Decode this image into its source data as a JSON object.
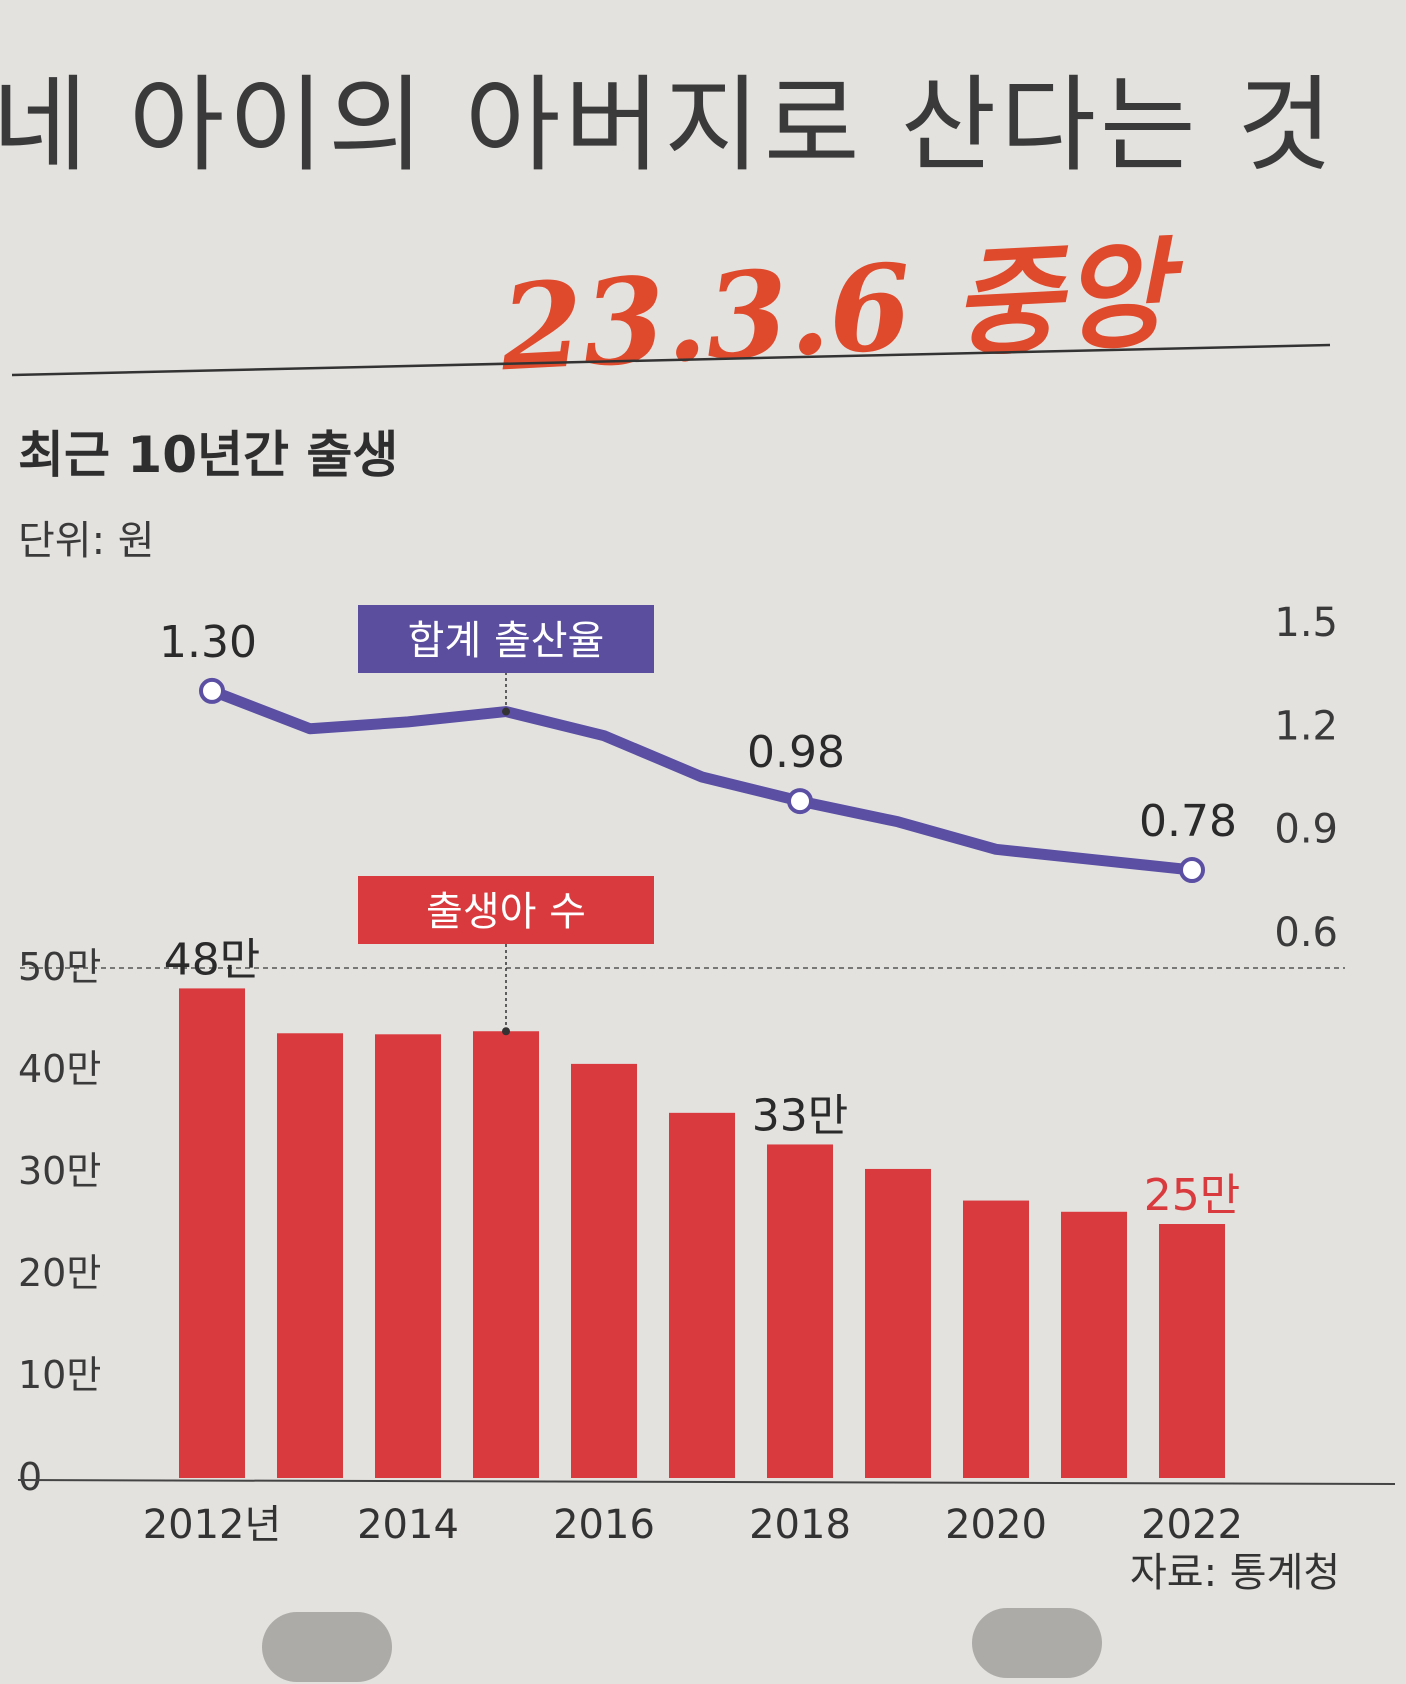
{
  "headline": "네 아이의 아버지로 산다는 것",
  "handwritten_note": "23.3.6 중앙",
  "colors": {
    "bar": "#d93a3e",
    "line": "#5a4fa3",
    "label_box_line": "#5b4e9e",
    "label_box_bar": "#d93a3e",
    "highlight": "#d93a3e",
    "background": "#e4e2df"
  },
  "chart_data": {
    "type": "bar",
    "title": "최근 10년간 출생",
    "unit_label": "단위: 원",
    "source": "자료: 통계청",
    "x": [
      2012,
      2013,
      2014,
      2015,
      2016,
      2017,
      2018,
      2019,
      2020,
      2021,
      2022
    ],
    "x_tick_labels": [
      "2012년",
      "2014",
      "2016",
      "2018",
      "2020",
      "2022"
    ],
    "x_tick_years": [
      2012,
      2014,
      2016,
      2018,
      2020,
      2022
    ],
    "bars": {
      "name": "출생아 수",
      "values": [
        48,
        43.6,
        43.5,
        43.8,
        40.6,
        35.8,
        32.7,
        30.3,
        27.2,
        26.1,
        24.9
      ],
      "y_axis_side": "left",
      "ylim": [
        0,
        50
      ],
      "y_ticks": [
        0,
        10,
        20,
        30,
        40,
        50
      ],
      "y_tick_labels": [
        "0",
        "10만",
        "20만",
        "30만",
        "40만",
        "50만"
      ],
      "annotations": [
        {
          "year": 2012,
          "text": "48만"
        },
        {
          "year": 2018,
          "text": "33만"
        },
        {
          "year": 2022,
          "text": "25만",
          "highlight": true
        }
      ]
    },
    "line": {
      "name": "합계 출산율",
      "values": [
        1.3,
        1.19,
        1.21,
        1.24,
        1.17,
        1.05,
        0.98,
        0.92,
        0.84,
        0.81,
        0.78
      ],
      "y_axis_side": "right",
      "ylim": [
        0.6,
        1.5
      ],
      "y_ticks": [
        0.6,
        0.9,
        1.2,
        1.5
      ],
      "y_tick_labels": [
        "0.6",
        "0.9",
        "1.2",
        "1.5"
      ],
      "annotations": [
        {
          "year": 2012,
          "text": "1.30"
        },
        {
          "year": 2018,
          "text": "0.98"
        },
        {
          "year": 2022,
          "text": "0.78"
        }
      ],
      "marker_years": [
        2012,
        2018,
        2022
      ]
    },
    "series_label_anchor_year": 2015,
    "grid": false,
    "dashed_reference_at_bar_value": 50
  }
}
